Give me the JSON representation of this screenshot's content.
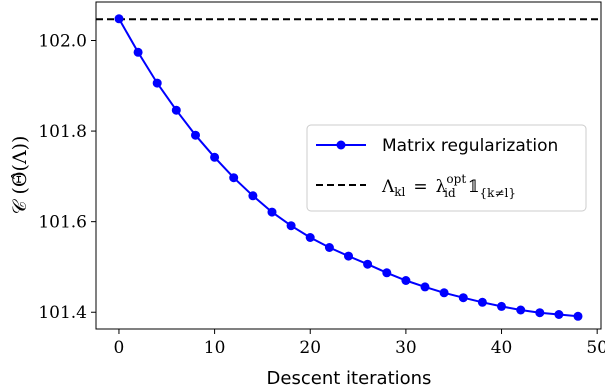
{
  "chart_data": {
    "type": "line",
    "xlabel": "Descent iterations",
    "ylabel": "𝒞 (Θ̂(Λ))",
    "xlim": [
      -2.4,
      50.4
    ],
    "ylim": [
      101.363,
      102.085
    ],
    "x_ticks": [
      0,
      10,
      20,
      30,
      40,
      50
    ],
    "x_tick_labels": [
      "0",
      "10",
      "20",
      "30",
      "40",
      "50"
    ],
    "y_ticks": [
      101.4,
      101.6,
      101.8,
      102.0
    ],
    "y_tick_labels": [
      "101.4",
      "101.6",
      "101.8",
      "102.0"
    ],
    "grid": false,
    "legend_position": "center-right",
    "series": [
      {
        "name": "Matrix regularization",
        "color": "#0000ff",
        "style": "solid-line-with-circle-markers",
        "x": [
          0,
          2,
          4,
          6,
          8,
          10,
          12,
          14,
          16,
          18,
          20,
          22,
          24,
          26,
          28,
          30,
          32,
          34,
          36,
          38,
          40,
          42,
          44,
          46,
          48
        ],
        "y": [
          102.048,
          101.974,
          101.906,
          101.846,
          101.791,
          101.742,
          101.697,
          101.657,
          101.621,
          101.591,
          101.565,
          101.543,
          101.524,
          101.506,
          101.487,
          101.47,
          101.456,
          101.443,
          101.432,
          101.422,
          101.413,
          101.405,
          101.399,
          101.395,
          101.391
        ]
      },
      {
        "name": "Λ_kl = λ_id^opt 𝟙_{k≠l}",
        "color": "#000000",
        "style": "dashed-horizontal",
        "y": 102.047
      }
    ],
    "legend": {
      "entry1": "Matrix regularization",
      "entry2_lhs": "Λ",
      "entry2_lhs_sub": "kl",
      "entry2_eq": "=",
      "entry2_lambda": "λ",
      "entry2_sup": "opt",
      "entry2_sub": "id",
      "entry2_one": "𝟙",
      "entry2_ind_sub": "{k≠l}"
    }
  }
}
